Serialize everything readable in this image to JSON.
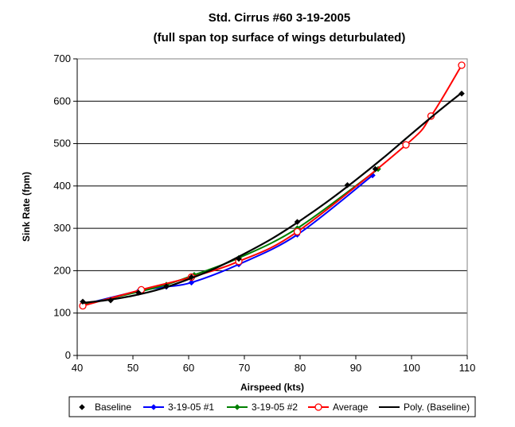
{
  "chart_data": {
    "type": "line",
    "title": "Std. Cirrus #60 3-19-2005",
    "subtitle": "(full span top surface of wings deturbulated)",
    "xlabel": "Airspeed (kts)",
    "ylabel": "Sink Rate (fpm)",
    "xlim": [
      40,
      110
    ],
    "ylim": [
      0,
      700
    ],
    "x_ticks": [
      40,
      50,
      60,
      70,
      80,
      90,
      100,
      110
    ],
    "y_ticks": [
      0,
      100,
      200,
      300,
      400,
      500,
      600,
      700
    ],
    "grid": "horizontal major gridlines",
    "legend_position": "bottom",
    "series": [
      {
        "name": "Baseline",
        "color": "#000000",
        "marker": "diamond",
        "line": false,
        "x": [
          41,
          46,
          51,
          56,
          60.5,
          69,
          79.5,
          88.5,
          93.5,
          109
        ],
        "y": [
          127,
          130,
          148,
          163,
          185,
          228,
          315,
          402,
          440,
          618
        ]
      },
      {
        "name": "3-19-05 #1",
        "color": "#0000ff",
        "marker": "diamond",
        "line": true,
        "x": [
          41,
          51,
          56,
          60.5,
          69,
          79.5,
          93
        ],
        "y": [
          120,
          152,
          162,
          172,
          215,
          285,
          425
        ]
      },
      {
        "name": "3-19-05 #2",
        "color": "#008000",
        "marker": "diamond",
        "line": true,
        "x": [
          41,
          51,
          56,
          61,
          69,
          79.5,
          94
        ],
        "y": [
          120,
          150,
          167,
          190,
          230,
          300,
          440
        ]
      },
      {
        "name": "Average",
        "color": "#ff0000",
        "marker": "circle",
        "line": true,
        "x": [
          41,
          51.5,
          60.5,
          69,
          79.5,
          99,
          103.5,
          109
        ],
        "y": [
          117,
          155,
          185,
          222,
          292,
          497,
          565,
          685
        ]
      },
      {
        "name": "Poly. (Baseline)",
        "color": "#000000",
        "marker": "none",
        "line": true,
        "x": [
          41,
          45,
          50,
          55,
          60,
          65,
          70,
          75,
          80,
          85,
          90,
          95,
          100,
          105,
          109
        ],
        "y": [
          124,
          130,
          141,
          157,
          180,
          207,
          240,
          276,
          318,
          364,
          414,
          467,
          523,
          578,
          620
        ]
      }
    ]
  }
}
